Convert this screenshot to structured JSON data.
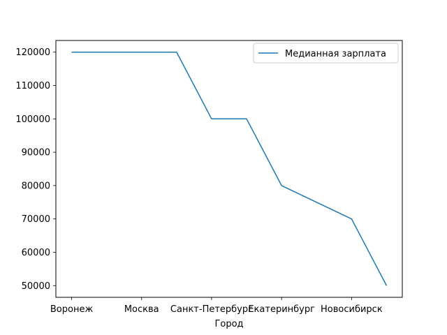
{
  "chart_data": {
    "type": "line",
    "title": "",
    "xlabel": "Город",
    "ylabel": "",
    "x_tick_labels": [
      "Воронеж",
      "Москва",
      "Санкт-Петербург",
      "Екатеринбург",
      "Новосибирск"
    ],
    "x_tick_positions": [
      0,
      2,
      4,
      6,
      8
    ],
    "x": [
      0,
      1,
      2,
      3,
      4,
      5,
      6,
      7,
      8,
      9
    ],
    "series": [
      {
        "name": "Медианная зарплата",
        "color": "#1f77b4",
        "values": [
          120000,
          120000,
          120000,
          120000,
          100000,
          100000,
          80000,
          75000,
          70000,
          50000
        ]
      }
    ],
    "xlim": [
      -0.45,
      9.45
    ],
    "ylim": [
      46500,
      123500
    ],
    "y_ticks": [
      50000,
      60000,
      70000,
      80000,
      90000,
      100000,
      110000,
      120000
    ],
    "grid": false,
    "legend_position": "upper right"
  }
}
